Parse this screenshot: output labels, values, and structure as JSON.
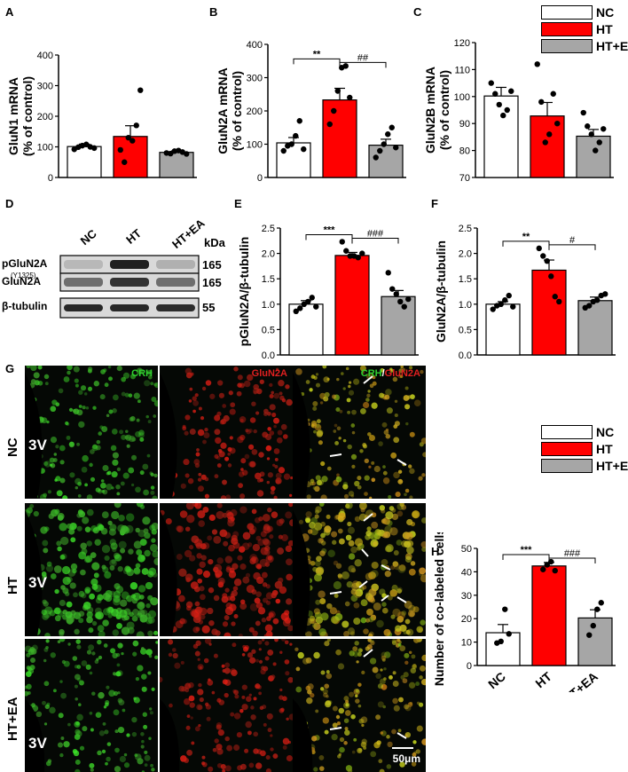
{
  "panel_labels": {
    "A": "A",
    "B": "B",
    "C": "C",
    "D": "D",
    "E": "E",
    "F": "F",
    "G": "G",
    "H": "H"
  },
  "colors": {
    "NC": "#ffffff",
    "HT": "#ff0000",
    "HT+EA": "#a6a6a6",
    "green": "#2fd02f",
    "red": "#e02020"
  },
  "legend": {
    "items": [
      "NC",
      "HT",
      "HT+EA"
    ]
  },
  "chart_data": [
    {
      "id": "A",
      "type": "bar",
      "categories": [
        "NC",
        "HT",
        "HT+EA"
      ],
      "values": [
        101,
        134,
        82
      ],
      "errors": [
        8,
        35,
        5
      ],
      "points": [
        [
          92,
          99,
          104,
          108,
          100,
          96
        ],
        [
          90,
          50,
          130,
          120,
          170,
          285
        ],
        [
          80,
          78,
          86,
          88,
          83,
          77
        ]
      ],
      "ylabel": "GluN1 mRNA (% of control)",
      "ylim": [
        0,
        400
      ],
      "yticks": [
        0,
        100,
        200,
        300,
        400
      ],
      "sig": []
    },
    {
      "id": "B",
      "type": "bar",
      "categories": [
        "NC",
        "HT",
        "HT+EA"
      ],
      "values": [
        104,
        233,
        97
      ],
      "errors": [
        16,
        35,
        18
      ],
      "points": [
        [
          80,
          95,
          100,
          125,
          170,
          85
        ],
        [
          160,
          200,
          260,
          330,
          335,
          240
        ],
        [
          60,
          80,
          100,
          130,
          150,
          90
        ]
      ],
      "ylabel": "GluN2A mRNA (% of control)",
      "ylim": [
        0,
        400
      ],
      "yticks": [
        0,
        100,
        200,
        300,
        400
      ],
      "sig": [
        {
          "from": 0,
          "to": 1,
          "text": "**"
        },
        {
          "from": 1,
          "to": 2,
          "text": "##"
        }
      ]
    },
    {
      "id": "C",
      "type": "bar",
      "categories": [
        "NC",
        "HT",
        "HT+EA"
      ],
      "values": [
        100.2,
        92.8,
        85.3
      ],
      "errors": [
        3.2,
        5,
        2.5
      ],
      "points": [
        [
          105,
          101,
          97,
          93,
          95,
          102
        ],
        [
          112,
          98,
          83,
          86,
          101,
          90
        ],
        [
          94,
          89,
          86,
          80,
          83,
          88
        ]
      ],
      "ylabel": "GluN2B mRNA (% of control)",
      "ylim": [
        70,
        120
      ],
      "yticks": [
        70,
        80,
        90,
        100,
        110,
        120
      ],
      "sig": []
    },
    {
      "id": "E",
      "type": "bar",
      "categories": [
        "NC",
        "HT",
        "HT+EA"
      ],
      "values": [
        1.0,
        1.96,
        1.15
      ],
      "errors": [
        0.07,
        0.06,
        0.12
      ],
      "points": [
        [
          0.86,
          0.92,
          1.0,
          1.05,
          1.13,
          0.95
        ],
        [
          2.23,
          2.05,
          1.95,
          1.95,
          1.92,
          2.0
        ],
        [
          1.62,
          1.3,
          1.2,
          1.05,
          0.95,
          1.1
        ]
      ],
      "ylabel": "pGluN2A/β-tubulin",
      "ylim": [
        0,
        2.5
      ],
      "yticks": [
        0.0,
        0.5,
        1.0,
        1.5,
        2.0,
        2.5
      ],
      "sig": [
        {
          "from": 0,
          "to": 1,
          "text": "***"
        },
        {
          "from": 1,
          "to": 2,
          "text": "###"
        }
      ]
    },
    {
      "id": "F",
      "type": "bar",
      "categories": [
        "NC",
        "HT",
        "HT+EA"
      ],
      "values": [
        1.0,
        1.67,
        1.07
      ],
      "errors": [
        0.05,
        0.2,
        0.07
      ],
      "points": [
        [
          0.9,
          0.97,
          1.0,
          1.08,
          1.17,
          0.95
        ],
        [
          2.1,
          1.95,
          1.85,
          1.55,
          1.15,
          1.05
        ],
        [
          0.93,
          0.97,
          1.05,
          1.08,
          1.17,
          1.2
        ]
      ],
      "ylabel": "GluN2A/β-tubulin",
      "ylim": [
        0,
        2.5
      ],
      "yticks": [
        0.0,
        0.5,
        1.0,
        1.5,
        2.0,
        2.5
      ],
      "sig": [
        {
          "from": 0,
          "to": 1,
          "text": "**"
        },
        {
          "from": 1,
          "to": 2,
          "text": "#"
        }
      ]
    },
    {
      "id": "H",
      "type": "bar",
      "categories": [
        "NC",
        "HT",
        "HT+EA"
      ],
      "values": [
        14,
        42.5,
        20.3
      ],
      "errors": [
        3.5,
        1.5,
        3.5
      ],
      "points": [
        [
          9.6,
          10.3,
          24,
          13.5
        ],
        [
          41,
          43,
          44.3,
          40.5
        ],
        [
          13,
          17,
          24,
          26.8
        ]
      ],
      "ylabel": "Number of co-labeled cells",
      "ylim": [
        0,
        50
      ],
      "yticks": [
        0,
        10,
        20,
        30,
        40,
        50
      ],
      "sig": [
        {
          "from": 0,
          "to": 1,
          "text": "***"
        },
        {
          "from": 1,
          "to": 2,
          "text": "###"
        }
      ]
    }
  ],
  "blot": {
    "lanes": [
      "NC",
      "HT",
      "HT+EA"
    ],
    "kda_label": "kDa",
    "rows": [
      {
        "label": "pGluN2A",
        "sublabel": "(Y1325)",
        "kda": "165",
        "intensity": [
          0.18,
          0.95,
          0.22
        ]
      },
      {
        "label": "GluN2A",
        "sublabel": "",
        "kda": "165",
        "intensity": [
          0.55,
          0.85,
          0.55
        ]
      },
      {
        "label": "β-tubulin",
        "sublabel": "",
        "kda": "55",
        "intensity": [
          0.9,
          0.9,
          0.88
        ]
      }
    ]
  },
  "micrographs": {
    "rows": [
      "NC",
      "HT",
      "HT+EA"
    ],
    "columns": [
      {
        "title": "CRH",
        "channel": "green"
      },
      {
        "title": "GluN2A",
        "channel": "red"
      },
      {
        "title_green": "CRH",
        "title_sep": "/",
        "title_red": "GluN2A",
        "channel": "merge"
      }
    ],
    "ventricle_label": "3V",
    "scalebar_label": "50μm"
  }
}
